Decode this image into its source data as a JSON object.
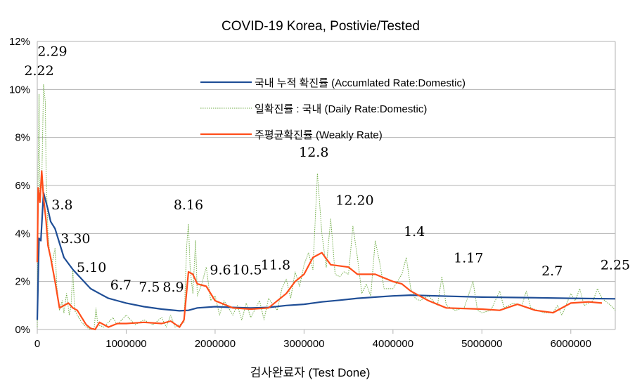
{
  "chart_data": {
    "type": "line",
    "title": "COVID-19 Korea, Postivie/Tested",
    "xlabel": "검사완료자 (Test Done)",
    "ylabel": "",
    "xlim": [
      0,
      6500000
    ],
    "ylim": [
      0,
      12
    ],
    "grid": true,
    "legend_placement": "top-center",
    "x_ticks": [
      0,
      1000000,
      2000000,
      3000000,
      4000000,
      5000000,
      6000000
    ],
    "x_tick_labels": [
      "0",
      "1000000",
      "2000000",
      "3000000",
      "4000000",
      "5000000",
      "6000000"
    ],
    "y_ticks": [
      0,
      2,
      4,
      6,
      8,
      10,
      12
    ],
    "y_tick_labels": [
      "0%",
      "2%",
      "4%",
      "6%",
      "8%",
      "10%",
      "12%"
    ],
    "x_unit_note": "series x values in millions of tests",
    "series": [
      {
        "name": "국내 누적 확진률 (Accumlated Rate:Domestic)",
        "color": "#1f4e96",
        "style": "solid",
        "points": [
          [
            0,
            0.4
          ],
          [
            0.02,
            3.8
          ],
          [
            0.04,
            3.7
          ],
          [
            0.07,
            5.7
          ],
          [
            0.12,
            5.0
          ],
          [
            0.15,
            4.5
          ],
          [
            0.2,
            4.2
          ],
          [
            0.3,
            3.0
          ],
          [
            0.4,
            2.5
          ],
          [
            0.5,
            2.1
          ],
          [
            0.6,
            1.7
          ],
          [
            0.7,
            1.5
          ],
          [
            0.8,
            1.3
          ],
          [
            0.9,
            1.2
          ],
          [
            1.0,
            1.1
          ],
          [
            1.2,
            0.95
          ],
          [
            1.4,
            0.85
          ],
          [
            1.6,
            0.78
          ],
          [
            1.7,
            0.8
          ],
          [
            1.8,
            0.9
          ],
          [
            2.0,
            0.95
          ],
          [
            2.2,
            0.92
          ],
          [
            2.4,
            0.9
          ],
          [
            2.6,
            0.92
          ],
          [
            2.8,
            1.0
          ],
          [
            3.0,
            1.05
          ],
          [
            3.2,
            1.15
          ],
          [
            3.4,
            1.22
          ],
          [
            3.6,
            1.3
          ],
          [
            3.8,
            1.35
          ],
          [
            4.0,
            1.4
          ],
          [
            4.2,
            1.43
          ],
          [
            4.5,
            1.4
          ],
          [
            5.0,
            1.35
          ],
          [
            5.5,
            1.33
          ],
          [
            6.0,
            1.3
          ],
          [
            6.5,
            1.28
          ]
        ]
      },
      {
        "name": "일확진률 : 국내 (Daily Rate:Domestic)",
        "color": "#70ad47",
        "style": "dotted",
        "points": [
          [
            0,
            0.1
          ],
          [
            0.01,
            6.8
          ],
          [
            0.02,
            9.8
          ],
          [
            0.03,
            5.5
          ],
          [
            0.05,
            6
          ],
          [
            0.07,
            10.2
          ],
          [
            0.09,
            9.5
          ],
          [
            0.1,
            6.5
          ],
          [
            0.12,
            4
          ],
          [
            0.14,
            3.2
          ],
          [
            0.16,
            2.7
          ],
          [
            0.18,
            3.0
          ],
          [
            0.2,
            3.4
          ],
          [
            0.22,
            1.8
          ],
          [
            0.25,
            0.8
          ],
          [
            0.28,
            1.2
          ],
          [
            0.3,
            0.7
          ],
          [
            0.33,
            1.5
          ],
          [
            0.36,
            0.6
          ],
          [
            0.38,
            1.0
          ],
          [
            0.4,
            2.5
          ],
          [
            0.42,
            0.8
          ],
          [
            0.45,
            0.6
          ],
          [
            0.5,
            0.3
          ],
          [
            0.55,
            0.1
          ],
          [
            0.6,
            0.0
          ],
          [
            0.64,
            0.05
          ],
          [
            0.66,
            0.9
          ],
          [
            0.68,
            0.2
          ],
          [
            0.75,
            0.1
          ],
          [
            0.8,
            0.3
          ],
          [
            0.85,
            0.5
          ],
          [
            0.9,
            0.2
          ],
          [
            1.0,
            0.6
          ],
          [
            1.1,
            0.2
          ],
          [
            1.2,
            0.4
          ],
          [
            1.3,
            0.2
          ],
          [
            1.4,
            0.5
          ],
          [
            1.45,
            0.1
          ],
          [
            1.5,
            0.6
          ],
          [
            1.55,
            0.1
          ],
          [
            1.6,
            0.2
          ],
          [
            1.65,
            0.3
          ],
          [
            1.68,
            3.5
          ],
          [
            1.7,
            4.4
          ],
          [
            1.72,
            2.5
          ],
          [
            1.75,
            1.5
          ],
          [
            1.78,
            3.7
          ],
          [
            1.8,
            1.4
          ],
          [
            1.85,
            1.9
          ],
          [
            1.9,
            2.6
          ],
          [
            1.95,
            1.2
          ],
          [
            2.0,
            1.4
          ],
          [
            2.05,
            0.6
          ],
          [
            2.1,
            1.2
          ],
          [
            2.2,
            0.6
          ],
          [
            2.25,
            1.0
          ],
          [
            2.3,
            0.4
          ],
          [
            2.35,
            1.1
          ],
          [
            2.4,
            0.5
          ],
          [
            2.5,
            1.2
          ],
          [
            2.55,
            0.4
          ],
          [
            2.6,
            1.3
          ],
          [
            2.7,
            0.8
          ],
          [
            2.75,
            1.7
          ],
          [
            2.8,
            2.1
          ],
          [
            2.85,
            1.3
          ],
          [
            2.9,
            2.4
          ],
          [
            2.95,
            1.8
          ],
          [
            3.0,
            2.7
          ],
          [
            3.05,
            3.2
          ],
          [
            3.1,
            2.5
          ],
          [
            3.15,
            6.5
          ],
          [
            3.2,
            4.0
          ],
          [
            3.25,
            2.6
          ],
          [
            3.3,
            4.6
          ],
          [
            3.35,
            2.3
          ],
          [
            3.4,
            2.2
          ],
          [
            3.45,
            2.4
          ],
          [
            3.5,
            2.3
          ],
          [
            3.55,
            4.3
          ],
          [
            3.6,
            3.0
          ],
          [
            3.65,
            1.5
          ],
          [
            3.7,
            1.9
          ],
          [
            3.75,
            1.4
          ],
          [
            3.8,
            3.7
          ],
          [
            3.85,
            2.8
          ],
          [
            3.9,
            1.7
          ],
          [
            4.0,
            1.7
          ],
          [
            4.1,
            2.3
          ],
          [
            4.15,
            3.0
          ],
          [
            4.2,
            1.7
          ],
          [
            4.25,
            1.3
          ],
          [
            4.3,
            1.2
          ],
          [
            4.4,
            1.4
          ],
          [
            4.5,
            1.0
          ],
          [
            4.55,
            2.2
          ],
          [
            4.6,
            1.0
          ],
          [
            4.7,
            0.8
          ],
          [
            4.8,
            0.9
          ],
          [
            4.9,
            2.0
          ],
          [
            4.95,
            0.8
          ],
          [
            5.0,
            0.7
          ],
          [
            5.1,
            0.8
          ],
          [
            5.2,
            1.6
          ],
          [
            5.25,
            0.9
          ],
          [
            5.35,
            1.1
          ],
          [
            5.45,
            1.0
          ],
          [
            5.5,
            1.6
          ],
          [
            5.55,
            0.9
          ],
          [
            5.7,
            0.7
          ],
          [
            5.8,
            0.7
          ],
          [
            5.85,
            1.0
          ],
          [
            5.9,
            0.6
          ],
          [
            6.0,
            1.5
          ],
          [
            6.05,
            1.2
          ],
          [
            6.1,
            1.7
          ],
          [
            6.15,
            1.0
          ],
          [
            6.25,
            1.2
          ],
          [
            6.3,
            1.7
          ],
          [
            6.35,
            1.3
          ],
          [
            6.45,
            1.0
          ],
          [
            6.5,
            0.8
          ]
        ]
      },
      {
        "name": "주평균확진률 (Weakly Rate)",
        "color": "#ff4e1a",
        "style": "solid",
        "points": [
          [
            0,
            2.8
          ],
          [
            0.01,
            5.9
          ],
          [
            0.03,
            5.3
          ],
          [
            0.05,
            6.6
          ],
          [
            0.07,
            5.5
          ],
          [
            0.1,
            4.5
          ],
          [
            0.12,
            3.5
          ],
          [
            0.15,
            3.0
          ],
          [
            0.2,
            2.0
          ],
          [
            0.25,
            0.9
          ],
          [
            0.3,
            1.0
          ],
          [
            0.35,
            1.1
          ],
          [
            0.4,
            0.9
          ],
          [
            0.45,
            0.8
          ],
          [
            0.5,
            0.5
          ],
          [
            0.55,
            0.2
          ],
          [
            0.6,
            0.05
          ],
          [
            0.65,
            0.0
          ],
          [
            0.7,
            0.3
          ],
          [
            0.8,
            0.1
          ],
          [
            0.9,
            0.25
          ],
          [
            1.0,
            0.25
          ],
          [
            1.2,
            0.3
          ],
          [
            1.4,
            0.25
          ],
          [
            1.5,
            0.35
          ],
          [
            1.6,
            0.1
          ],
          [
            1.65,
            0.4
          ],
          [
            1.7,
            2.4
          ],
          [
            1.75,
            2.3
          ],
          [
            1.8,
            1.9
          ],
          [
            1.9,
            1.8
          ],
          [
            2.0,
            1.2
          ],
          [
            2.2,
            0.9
          ],
          [
            2.4,
            0.85
          ],
          [
            2.6,
            0.9
          ],
          [
            2.8,
            1.5
          ],
          [
            2.9,
            2.0
          ],
          [
            3.0,
            2.3
          ],
          [
            3.1,
            3.0
          ],
          [
            3.2,
            3.2
          ],
          [
            3.3,
            2.7
          ],
          [
            3.5,
            2.6
          ],
          [
            3.6,
            2.3
          ],
          [
            3.8,
            2.3
          ],
          [
            4.0,
            2.0
          ],
          [
            4.1,
            1.9
          ],
          [
            4.2,
            1.6
          ],
          [
            4.4,
            1.2
          ],
          [
            4.6,
            0.9
          ],
          [
            5.0,
            0.85
          ],
          [
            5.2,
            0.8
          ],
          [
            5.4,
            1.05
          ],
          [
            5.6,
            0.8
          ],
          [
            5.8,
            0.7
          ],
          [
            6.0,
            1.1
          ],
          [
            6.2,
            1.15
          ],
          [
            6.35,
            1.1
          ]
        ]
      }
    ],
    "annotations": [
      {
        "text": "2.22",
        "x": 0.02,
        "y": 10.6
      },
      {
        "text": "2.29",
        "x": 0.17,
        "y": 11.4
      },
      {
        "text": "3.8",
        "x": 0.28,
        "y": 5.0
      },
      {
        "text": "3.30",
        "x": 0.43,
        "y": 3.6
      },
      {
        "text": "5.10",
        "x": 0.61,
        "y": 2.4
      },
      {
        "text": "6.7",
        "x": 0.94,
        "y": 1.67
      },
      {
        "text": "7.5",
        "x": 1.26,
        "y": 1.58
      },
      {
        "text": "8.9",
        "x": 1.53,
        "y": 1.58
      },
      {
        "text": "8.16",
        "x": 1.7,
        "y": 5.0
      },
      {
        "text": "9.6",
        "x": 2.06,
        "y": 2.3
      },
      {
        "text": "10.5",
        "x": 2.36,
        "y": 2.3
      },
      {
        "text": "11.8",
        "x": 2.68,
        "y": 2.5
      },
      {
        "text": "12.8",
        "x": 3.11,
        "y": 7.2
      },
      {
        "text": "12.20",
        "x": 3.57,
        "y": 5.2
      },
      {
        "text": "1.4",
        "x": 4.24,
        "y": 3.9
      },
      {
        "text": "1.17",
        "x": 4.85,
        "y": 2.8
      },
      {
        "text": "2.7",
        "x": 5.79,
        "y": 2.25
      },
      {
        "text": "2.25",
        "x": 6.5,
        "y": 2.5
      }
    ]
  }
}
